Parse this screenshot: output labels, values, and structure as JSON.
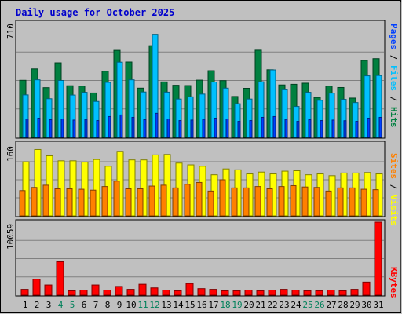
{
  "chart_data": {
    "type": "bar",
    "title": "Daily usage for October 2025",
    "days": [
      "1",
      "2",
      "3",
      "4",
      "5",
      "6",
      "7",
      "8",
      "9",
      "10",
      "11",
      "12",
      "13",
      "14",
      "15",
      "16",
      "17",
      "18",
      "19",
      "20",
      "21",
      "22",
      "23",
      "24",
      "25",
      "26",
      "27",
      "28",
      "29",
      "30",
      "31"
    ],
    "weekend_days": [
      "4",
      "5",
      "11",
      "12",
      "18",
      "19",
      "25",
      "26"
    ],
    "panels": [
      {
        "id": "hits",
        "ymax_label": "710",
        "ymax": 710,
        "right_labels": [
          "Pages",
          "Files",
          "Hits"
        ],
        "series": [
          {
            "name": "Hits",
            "color": "#008040",
            "values": [
              356,
              427,
              310,
              465,
              322,
              320,
              277,
              413,
              543,
              470,
              307,
              572,
              346,
              325,
              323,
              357,
              416,
              354,
              255,
              306,
              544,
              422,
              327,
              331,
              338,
              249,
              320,
              311,
              245,
              480,
              491
            ]
          },
          {
            "name": "Files",
            "color": "#00C0FF",
            "values": [
              265,
              359,
              241,
              355,
              264,
              281,
              224,
              343,
              469,
              359,
              283,
              643,
              282,
              239,
              253,
              270,
              345,
              307,
              210,
              239,
              347,
              421,
              297,
              193,
              281,
              231,
              276,
              237,
              217,
              384,
              386
            ]
          },
          {
            "name": "Pages",
            "color": "#0040FF",
            "values": [
              115,
              120,
              110,
              115,
              108,
              112,
              105,
              130,
              140,
              125,
              110,
              150,
              115,
              105,
              108,
              112,
              120,
              115,
              100,
              105,
              125,
              130,
              112,
              100,
              110,
              105,
              108,
              104,
              100,
              120,
              125
            ]
          }
        ]
      },
      {
        "id": "sites",
        "ymax_label": "160",
        "ymax": 160,
        "right_labels": [
          "Sites",
          "Visits"
        ],
        "series": [
          {
            "name": "Visits",
            "color": "#FFFF00",
            "values": [
              120,
              147,
              133,
              122,
              122,
              119,
              125,
              110,
              143,
              124,
              124,
              135,
              136,
              117,
              113,
              110,
              91,
              104,
              102,
              93,
              97,
              93,
              99,
              100,
              91,
              93,
              89,
              95,
              95,
              96,
              93
            ]
          },
          {
            "name": "Sites",
            "color": "#FF8000",
            "values": [
              56,
              63,
              68,
              60,
              60,
              59,
              57,
              65,
              77,
              60,
              60,
              66,
              68,
              62,
              70,
              74,
              55,
              80,
              62,
              62,
              65,
              60,
              65,
              67,
              64,
              63,
              55,
              62,
              62,
              59,
              58
            ]
          }
        ]
      },
      {
        "id": "kbytes",
        "ymax_label": "10059",
        "ymax": 10059,
        "right_labels": [
          "KBytes"
        ],
        "series": [
          {
            "name": "KBytes",
            "color": "#FF0000",
            "values": [
              800,
              2200,
              1400,
              4600,
              600,
              700,
              1400,
              700,
              1200,
              800,
              1500,
              1000,
              700,
              600,
              1600,
              900,
              800,
              600,
              600,
              700,
              600,
              700,
              800,
              700,
              600,
              600,
              700,
              600,
              800,
              1800,
              10059
            ]
          }
        ]
      }
    ],
    "grid": true
  }
}
